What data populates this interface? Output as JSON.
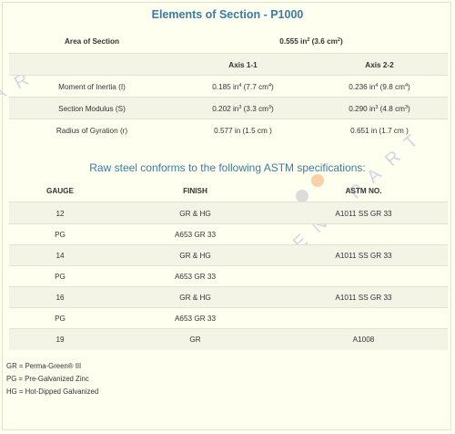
{
  "section": {
    "title": "Elements of Section - P1000",
    "area_label": "Area of Section",
    "area_value": "0.555 in² (3.6 cm²)",
    "axis_headers": [
      "Axis 1-1",
      "Axis 2-2"
    ],
    "rows": [
      {
        "label": "Moment of Inertia (I)",
        "axis1": "0.185 in⁴ (7.7 cm⁴)",
        "axis2": "0.236 in⁴ (9.8 cm⁴)"
      },
      {
        "label": "Section Modulus (S)",
        "axis1": "0.202 in³ (3.3 cm³)",
        "axis2": "0.290 in³ (4.8 cm³)"
      },
      {
        "label": "Radius of Gyration (r)",
        "axis1": "0.577 in (1.5 cm )",
        "axis2": "0.651 in (1.7 cm )"
      }
    ]
  },
  "astm": {
    "title": "Raw steel conforms to the following ASTM specifications:",
    "headers": [
      "GAUGE",
      "FINISH",
      "ASTM NO."
    ],
    "rows": [
      {
        "gauge": "12",
        "finish": "GR & HG",
        "astm": "A1011 SS GR 33"
      },
      {
        "gauge": "PG",
        "finish": "A653 GR 33",
        "astm": ""
      },
      {
        "gauge": "14",
        "finish": "GR & HG",
        "astm": "A1011 SS GR 33"
      },
      {
        "gauge": "PG",
        "finish": "A653 GR 33",
        "astm": ""
      },
      {
        "gauge": "16",
        "finish": "GR & HG",
        "astm": "A1011 SS GR 33"
      },
      {
        "gauge": "PG",
        "finish": "A653 GR 33",
        "astm": ""
      },
      {
        "gauge": "19",
        "finish": "GR",
        "astm": "A1008"
      }
    ]
  },
  "legend": [
    "GR = Perma-Green® III",
    "PG = Pre-Galvanized Zinc",
    "HG = Hot-Dipped Galvanized"
  ],
  "watermark": {
    "left_text": "ART",
    "right_text": "ENAPART",
    "dot_colors": [
      "#f4a7a7",
      "#d9d9d9",
      "#f8d2a6"
    ]
  }
}
